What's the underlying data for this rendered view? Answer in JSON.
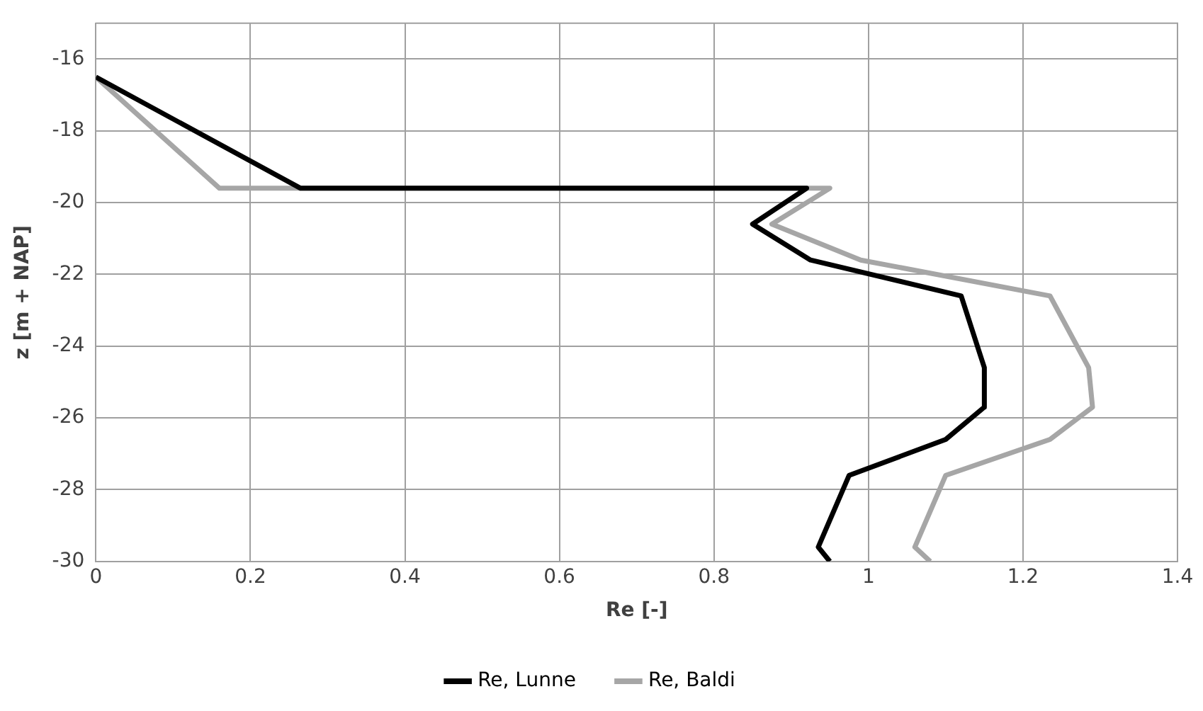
{
  "chart_data": {
    "type": "line",
    "xlabel": "Re [-]",
    "ylabel": "z [m + NAP]",
    "xlim": [
      0,
      1.4
    ],
    "xticks": [
      0,
      0.2,
      0.4,
      0.6,
      0.8,
      1,
      1.2,
      1.4
    ],
    "ylim": [
      -30,
      -15
    ],
    "yticks": [
      -30,
      -28,
      -26,
      -24,
      -22,
      -20,
      -18,
      -16
    ],
    "grid": true,
    "legend": "bottom",
    "marker": "none",
    "line_style": "solid",
    "series": [
      {
        "name": "Re, Lunne",
        "color": "#000000",
        "x": [
          0,
          0.265,
          0.92,
          0.85,
          0.925,
          1.12,
          1.15,
          1.15,
          1.1,
          0.975,
          0.935,
          0.95
        ],
        "values": [
          -16.5,
          -19.6,
          -19.6,
          -20.6,
          -21.6,
          -22.6,
          -24.6,
          -25.7,
          -26.6,
          -27.6,
          -29.6,
          -30
        ]
      },
      {
        "name": "Re, Baldi",
        "color": "#a6a6a6",
        "x": [
          0,
          0.16,
          0.95,
          0.875,
          0.99,
          1.235,
          1.285,
          1.29,
          1.235,
          1.1,
          1.06,
          1.08
        ],
        "values": [
          -16.5,
          -19.6,
          -19.6,
          -20.6,
          -21.6,
          -22.6,
          -24.6,
          -25.7,
          -26.6,
          -27.6,
          -29.6,
          -30
        ]
      }
    ]
  }
}
